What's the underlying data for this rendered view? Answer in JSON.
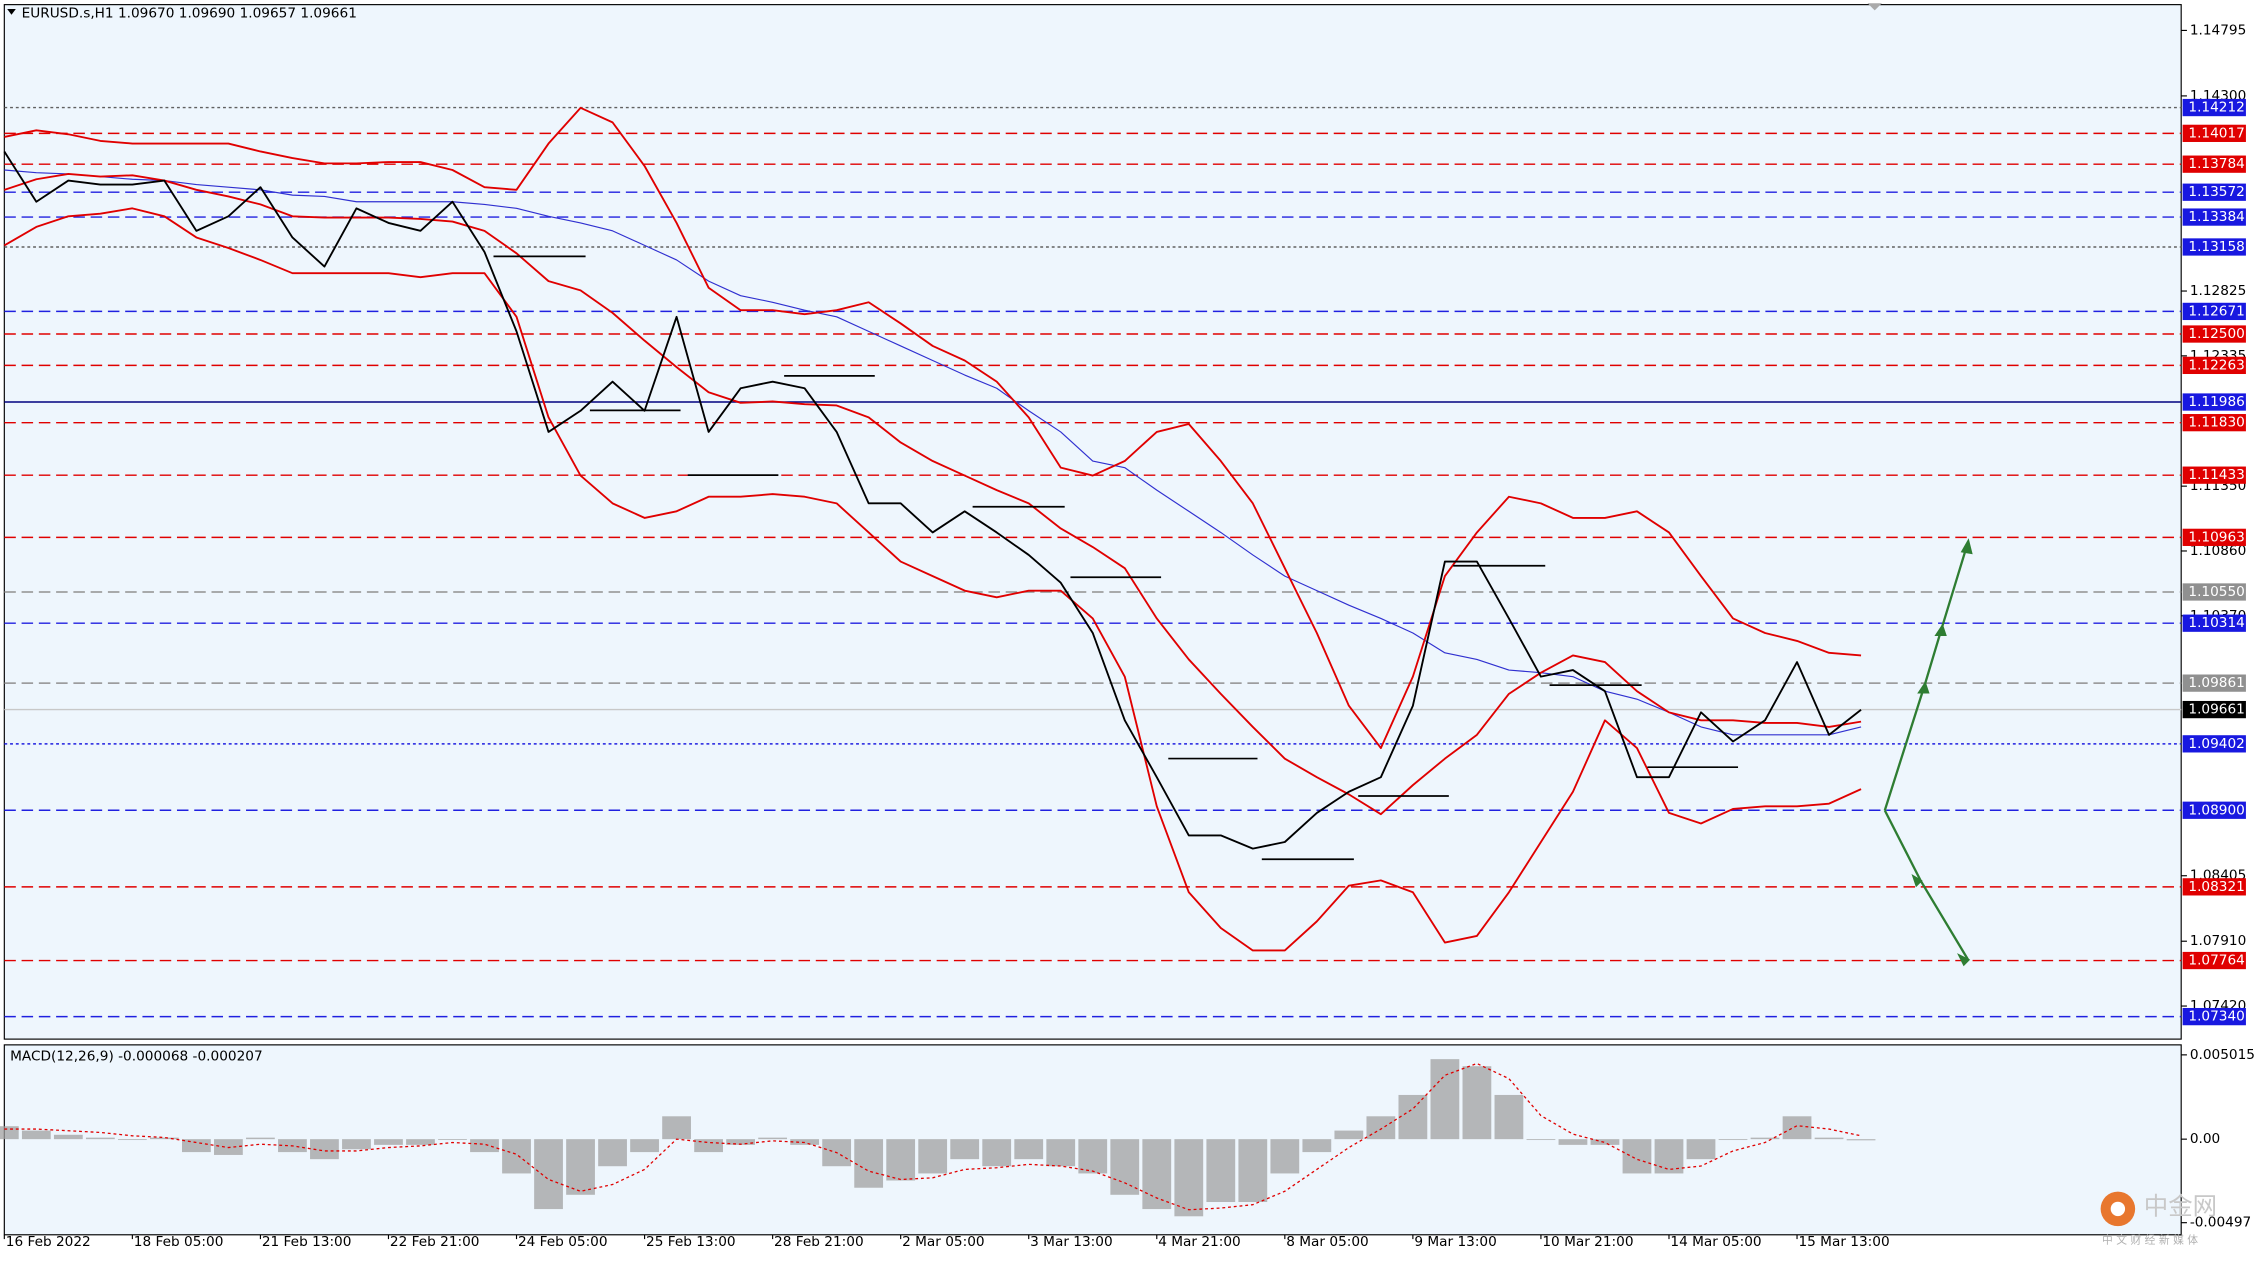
{
  "chart_data": {
    "type": "price",
    "title": "EURUSD.s,H1  1.09670 1.09690 1.09657 1.09661",
    "categories": [
      "16 Feb 2022",
      null,
      null,
      null,
      "18 Feb 05:00",
      null,
      null,
      null,
      "21 Feb 13:00",
      null,
      null,
      null,
      "22 Feb 21:00",
      null,
      null,
      null,
      "24 Feb 05:00",
      null,
      null,
      null,
      "25 Feb 13:00",
      null,
      null,
      null,
      "28 Feb 21:00",
      null,
      null,
      null,
      "2 Mar 05:00",
      null,
      null,
      null,
      "3 Mar 13:00",
      null,
      null,
      null,
      "4 Mar 21:00",
      null,
      null,
      null,
      "8 Mar 05:00",
      null,
      null,
      null,
      "9 Mar 13:00",
      null,
      null,
      null,
      "10 Mar 21:00",
      null,
      null,
      null,
      "14 Mar 05:00",
      null,
      null,
      null,
      "15 Mar 13:00",
      null,
      null
    ],
    "series": [
      {
        "name": "Close",
        "color": "#000000",
        "values": [
          1.1388,
          1.135,
          1.1366,
          1.1363,
          1.1363,
          1.1366,
          1.1328,
          1.1339,
          1.1361,
          1.1323,
          1.1301,
          1.1345,
          1.1334,
          1.1328,
          1.135,
          1.1312,
          1.1252,
          1.1176,
          1.1192,
          1.1214,
          1.1192,
          1.1263,
          1.1176,
          1.1209,
          1.1214,
          1.1209,
          1.1176,
          1.1122,
          1.1122,
          1.11,
          1.1116,
          1.11,
          1.1083,
          1.1062,
          1.1024,
          1.0958,
          1.0915,
          1.0871,
          1.0871,
          1.0861,
          1.0866,
          1.0888,
          1.0904,
          1.0915,
          1.0969,
          1.1078,
          1.1078,
          1.1035,
          1.0991,
          1.0996,
          1.098,
          1.0915,
          1.0915,
          1.0964,
          1.0942,
          1.0958,
          1.1002,
          1.0947,
          1.0966
        ]
      },
      {
        "name": "Upper band",
        "color": "#e00000",
        "values": [
          1.1399,
          1.1404,
          1.1401,
          1.1396,
          1.1394,
          1.1394,
          1.1394,
          1.1394,
          1.1388,
          1.1383,
          1.1379,
          1.1379,
          1.138,
          1.138,
          1.1374,
          1.1361,
          1.1359,
          1.1394,
          1.1421,
          1.141,
          1.1377,
          1.1334,
          1.1285,
          1.1268,
          1.1268,
          1.1265,
          1.1268,
          1.1274,
          1.1258,
          1.1241,
          1.123,
          1.1214,
          1.1187,
          1.1149,
          1.1143,
          1.1154,
          1.1176,
          1.1182,
          1.1154,
          1.1122,
          1.1073,
          1.1024,
          1.0969,
          1.0937,
          1.0991,
          1.1067,
          1.11,
          1.1127,
          1.1122,
          1.1111,
          1.1111,
          1.1116,
          1.11,
          1.1067,
          1.1035,
          1.1024,
          1.1018,
          1.1009,
          1.1007
        ]
      },
      {
        "name": "Middle band",
        "color": "#e00000",
        "values": [
          1.1359,
          1.1367,
          1.1371,
          1.1369,
          1.137,
          1.1366,
          1.1359,
          1.1354,
          1.1348,
          1.1339,
          1.1338,
          1.1338,
          1.1338,
          1.1337,
          1.1335,
          1.1328,
          1.1311,
          1.129,
          1.1283,
          1.1266,
          1.1245,
          1.1225,
          1.1206,
          1.1198,
          1.1199,
          1.1197,
          1.1196,
          1.1187,
          1.1168,
          1.1154,
          1.1143,
          1.1132,
          1.1122,
          1.1103,
          1.1089,
          1.1073,
          1.1035,
          1.1004,
          1.0978,
          1.0953,
          1.0929,
          1.0915,
          1.0902,
          1.0887,
          1.0909,
          1.0929,
          1.0947,
          1.0978,
          1.0994,
          1.1007,
          1.1002,
          1.098,
          1.0964,
          1.0958,
          1.0958,
          1.0956,
          1.0956,
          1.0953,
          1.0957
        ]
      },
      {
        "name": "Lower band",
        "color": "#e00000",
        "values": [
          1.1317,
          1.1331,
          1.1339,
          1.1341,
          1.1345,
          1.1339,
          1.1323,
          1.1315,
          1.1306,
          1.1296,
          1.1296,
          1.1296,
          1.1296,
          1.1293,
          1.1296,
          1.1296,
          1.1263,
          1.1187,
          1.1143,
          1.1122,
          1.1111,
          1.1116,
          1.1127,
          1.1127,
          1.1129,
          1.1127,
          1.1122,
          1.11,
          1.1078,
          1.1067,
          1.1056,
          1.1051,
          1.1056,
          1.1056,
          1.1035,
          1.0991,
          1.0893,
          1.0828,
          1.0801,
          1.0784,
          1.0784,
          1.0806,
          1.0833,
          1.0837,
          1.0828,
          1.079,
          1.0795,
          1.0828,
          1.0866,
          1.0904,
          1.0958,
          1.0937,
          1.0888,
          1.088,
          1.0891,
          1.0893,
          1.0893,
          1.0895,
          1.0906
        ]
      },
      {
        "name": "Moving average",
        "color": "#3030d0",
        "values": [
          1.1374,
          1.1372,
          1.1371,
          1.1369,
          1.1367,
          1.1366,
          1.1363,
          1.1361,
          1.1359,
          1.1355,
          1.1354,
          1.135,
          1.135,
          1.135,
          1.135,
          1.1348,
          1.1345,
          1.1339,
          1.1334,
          1.1328,
          1.1317,
          1.1306,
          1.129,
          1.1279,
          1.1274,
          1.1268,
          1.1263,
          1.1252,
          1.1241,
          1.123,
          1.1219,
          1.1209,
          1.1192,
          1.1176,
          1.1154,
          1.1149,
          1.1132,
          1.1116,
          1.11,
          1.1083,
          1.1067,
          1.1056,
          1.1045,
          1.1035,
          1.1024,
          1.1009,
          1.1004,
          1.0996,
          1.0994,
          1.0991,
          1.098,
          1.0974,
          1.0964,
          1.0953,
          1.0947,
          1.0947,
          1.0947,
          1.0947,
          1.0953
        ]
      }
    ],
    "ylim": [
      1.0717,
      1.1499
    ],
    "yticks": [
      1.14795,
      {
        "value": 1.143,
        "label": "1.14300"
      },
      1.12825,
      1.12335,
      {
        "value": 1.1135,
        "label": "1.11350"
      },
      {
        "value": 1.1086,
        "label": "1.10860"
      },
      {
        "value": 1.1037,
        "label": "1.10370"
      },
      1.08405,
      {
        "value": 1.0791,
        "label": "1.07910"
      },
      {
        "value": 1.0742,
        "label": "1.07420"
      }
    ],
    "levels": [
      {
        "value": 1.14212,
        "color": "#606060",
        "style": "dotted",
        "label_color": "#1818e0"
      },
      {
        "value": 1.14017,
        "color": "#e00000",
        "style": "dashed",
        "label_color": "#e00000"
      },
      {
        "value": 1.13784,
        "color": "#e00000",
        "style": "dashed",
        "label_color": "#e00000"
      },
      {
        "value": 1.13572,
        "color": "#2020e0",
        "style": "dashed",
        "label_color": "#1818e0"
      },
      {
        "value": 1.13384,
        "color": "#2020e0",
        "style": "dashed",
        "label_color": "#1818e0"
      },
      {
        "value": 1.13158,
        "color": "#606060",
        "style": "dotted",
        "label_color": "#1818e0"
      },
      {
        "value": 1.12671,
        "color": "#2020e0",
        "style": "dashed",
        "label_color": "#1818e0"
      },
      {
        "value": 1.125,
        "label": "1.12500",
        "color": "#e00000",
        "style": "dashed",
        "label_color": "#e00000"
      },
      {
        "value": 1.12263,
        "color": "#e00000",
        "style": "dashed",
        "label_color": "#e00000"
      },
      {
        "value": 1.11986,
        "color": "#000080",
        "style": "solid",
        "label_color": "#1818e0"
      },
      {
        "value": 1.1183,
        "label": "1.11830",
        "color": "#e00000",
        "style": "dashed",
        "label_color": "#e00000"
      },
      {
        "value": 1.11433,
        "color": "#e00000",
        "style": "dashed",
        "label_color": "#e00000"
      },
      {
        "value": 1.10963,
        "color": "#e00000",
        "style": "dashed",
        "label_color": "#e00000"
      },
      {
        "value": 1.1055,
        "label": "1.10550",
        "color": "#909090",
        "style": "dashed",
        "label_color": "#909090"
      },
      {
        "value": 1.10314,
        "color": "#2020e0",
        "style": "dashed",
        "label_color": "#1818e0"
      },
      {
        "value": 1.09861,
        "color": "#909090",
        "style": "dashed",
        "label_color": "#909090"
      },
      {
        "value": 1.09661,
        "color": "#c8c8c8",
        "style": "solid",
        "label_color": "#000000"
      },
      {
        "value": 1.09402,
        "color": "#2020e0",
        "style": "dotted",
        "label_color": "#1818e0"
      },
      {
        "value": 1.089,
        "label": "1.08900",
        "color": "#2020e0",
        "style": "dashed",
        "label_color": "#1818e0"
      },
      {
        "value": 1.08321,
        "color": "#e00000",
        "style": "dashed",
        "label_color": "#e00000"
      },
      {
        "value": 1.07764,
        "color": "#e00000",
        "style": "dashed",
        "label_color": "#e00000"
      },
      {
        "value": 1.0734,
        "label": "1.07340",
        "color": "#2020e0",
        "style": "dashed",
        "label_color": "#1818e0"
      }
    ],
    "macd": {
      "title": "MACD(12,26,9) -0.000068 -0.000207",
      "histogram": {
        "color": "#a0a0a0",
        "values": [
          0.00077,
          0.00051,
          0.00026,
          9e-05,
          0,
          9e-05,
          -0.00077,
          -0.00094,
          9e-05,
          -0.00077,
          -0.00119,
          -0.0006,
          -0.00034,
          -0.00034,
          0,
          -0.00077,
          -0.00204,
          -0.00416,
          -0.00331,
          -0.00161,
          -0.00077,
          0.00136,
          -0.00077,
          -0.00034,
          9e-05,
          -0.00034,
          -0.00161,
          -0.00289,
          -0.00246,
          -0.00204,
          -0.00119,
          -0.00161,
          -0.00119,
          -0.00161,
          -0.00204,
          -0.00331,
          -0.00416,
          -0.00459,
          -0.00374,
          -0.00374,
          -0.00204,
          -0.00077,
          0.00051,
          0.00136,
          0.00263,
          0.00476,
          0.00434,
          0.00263,
          0,
          -0.00034,
          -0.00034,
          -0.00204,
          -0.00204,
          -0.00119,
          0,
          9e-05,
          0.00136,
          9e-05,
          -7e-05
        ]
      },
      "signal": {
        "color": "#e00000",
        "values": [
          0.0006,
          0.0006,
          0.0005,
          0.0004,
          0.0002,
          0.0001,
          -0.0002,
          -0.0005,
          -0.0003,
          -0.0004,
          -0.0007,
          -0.0007,
          -0.0005,
          -0.0004,
          -0.0002,
          -0.0003,
          -0.0009,
          -0.0024,
          -0.0031,
          -0.0027,
          -0.0018,
          0,
          -0.0002,
          -0.0003,
          -0.0001,
          -0.0002,
          -0.0008,
          -0.0019,
          -0.0024,
          -0.0023,
          -0.0018,
          -0.0017,
          -0.0015,
          -0.0016,
          -0.0019,
          -0.0026,
          -0.0035,
          -0.0042,
          -0.0041,
          -0.0039,
          -0.0031,
          -0.0018,
          -0.0005,
          0.0006,
          0.0018,
          0.0038,
          0.0045,
          0.0036,
          0.0014,
          0.0003,
          -0.0002,
          -0.0012,
          -0.0018,
          -0.0016,
          -0.0007,
          -0.0002,
          0.0008,
          0.0006,
          0.0002
        ]
      },
      "ylim": [
        -0.00569,
        0.00561
      ],
      "yticks": [
        0.005015,
        {
          "value": 0,
          "label": "0.00"
        },
        -0.00497
      ]
    },
    "watermark": {
      "logo": "中金网",
      "slogan": "中 文 财 经 新 媒 体"
    }
  }
}
